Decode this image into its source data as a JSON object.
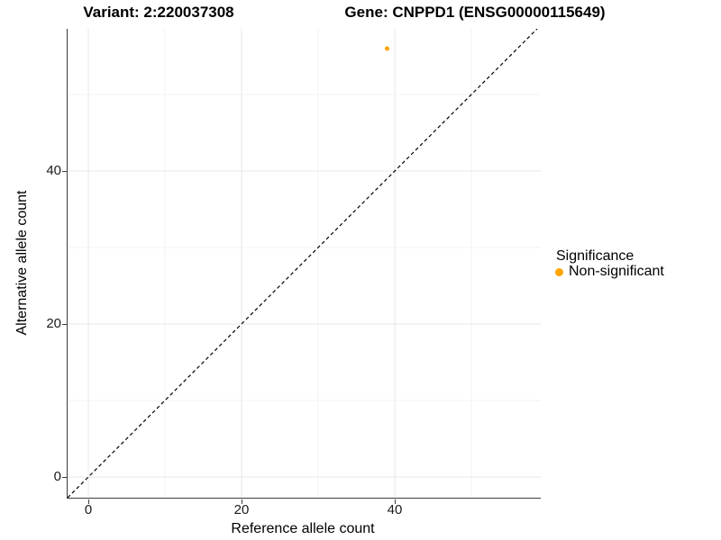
{
  "titles": {
    "variant": "Variant: 2:220037308",
    "gene": "Gene: CNPPD1 (ENSG00000115649)"
  },
  "axes": {
    "x": {
      "label": "Reference allele count",
      "tick_labels": [
        "0",
        "20",
        "40"
      ]
    },
    "y": {
      "label": "Alternative allele count",
      "tick_labels": [
        "0",
        "20",
        "40"
      ]
    }
  },
  "legend": {
    "title": "Significance",
    "items": [
      {
        "label": "Non-significant",
        "color": "#FFA500",
        "marker": "dot-icon"
      }
    ]
  },
  "colors": {
    "point_orange": "#FFA500",
    "axis_line": "#3c3c3c",
    "grid_major": "#e7e7e7",
    "grid_minor": "#f3f3f3",
    "identity_line": "#000000"
  },
  "chart_data": {
    "type": "scatter",
    "title_left": "Variant: 2:220037308",
    "title_right": "Gene: CNPPD1 (ENSG00000115649)",
    "xlabel": "Reference allele count",
    "ylabel": "Alternative allele count",
    "xlim": [
      -2.7,
      59.1
    ],
    "ylim": [
      -2.7,
      58.6
    ],
    "x_ticks": [
      0,
      20,
      40
    ],
    "y_ticks": [
      0,
      20,
      40
    ],
    "gridline_values": [
      0,
      10,
      20,
      30,
      40,
      50
    ],
    "grid": "on",
    "legend_position": "right",
    "identity_line": {
      "equation": "y = x",
      "style": "dashed",
      "color": "#000000"
    },
    "series": [
      {
        "name": "Non-significant",
        "color": "#FFA500",
        "marker_radius": 2.5,
        "points": [
          {
            "x": 39,
            "y": 56
          }
        ]
      }
    ]
  }
}
